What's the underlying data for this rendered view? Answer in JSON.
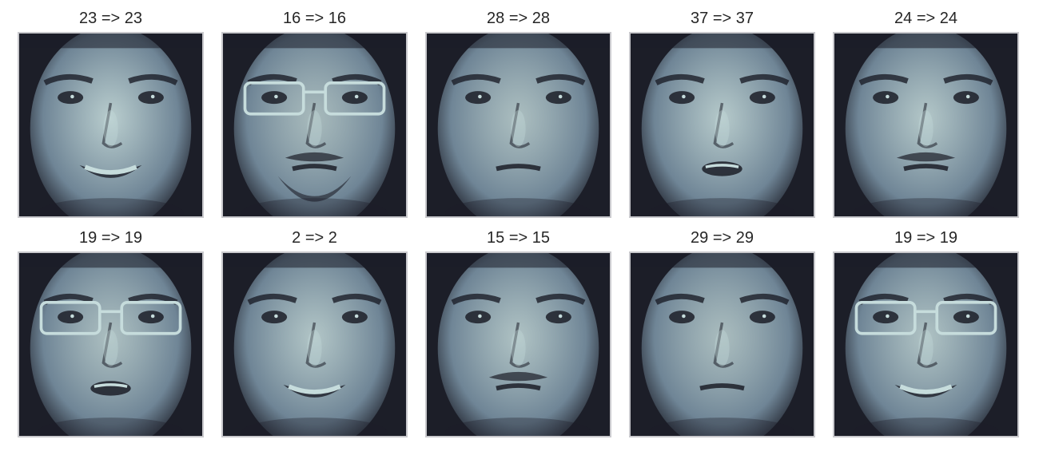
{
  "colormap": {
    "name": "bone",
    "dark": "#1c1e28",
    "mid": "#6f8596",
    "light": "#c6dcdc",
    "frame": "#c9c9cd"
  },
  "faces": [
    {
      "title": "23 => 23",
      "variant": "smile",
      "glasses": false,
      "beard": false,
      "mustache": false,
      "brightness": 0.8
    },
    {
      "title": "16 => 16",
      "variant": "neutral",
      "glasses": true,
      "beard": true,
      "mustache": true,
      "brightness": 0.55
    },
    {
      "title": "28 => 28",
      "variant": "neutral",
      "glasses": false,
      "beard": false,
      "mustache": false,
      "brightness": 0.6
    },
    {
      "title": "37 => 37",
      "variant": "open",
      "glasses": false,
      "beard": false,
      "mustache": false,
      "brightness": 0.75
    },
    {
      "title": "24 => 24",
      "variant": "neutral",
      "glasses": false,
      "beard": false,
      "mustache": true,
      "brightness": 0.72
    },
    {
      "title": "19 => 19",
      "variant": "open",
      "glasses": true,
      "beard": false,
      "mustache": false,
      "brightness": 0.62
    },
    {
      "title": "2 => 2",
      "variant": "smile",
      "glasses": false,
      "beard": false,
      "mustache": false,
      "brightness": 0.7
    },
    {
      "title": "15 => 15",
      "variant": "neutral",
      "glasses": false,
      "beard": false,
      "mustache": true,
      "brightness": 0.66
    },
    {
      "title": "29 => 29",
      "variant": "neutral",
      "glasses": false,
      "beard": false,
      "mustache": false,
      "brightness": 0.58
    },
    {
      "title": "19 => 19",
      "variant": "smile",
      "glasses": true,
      "beard": false,
      "mustache": false,
      "brightness": 0.66
    }
  ]
}
